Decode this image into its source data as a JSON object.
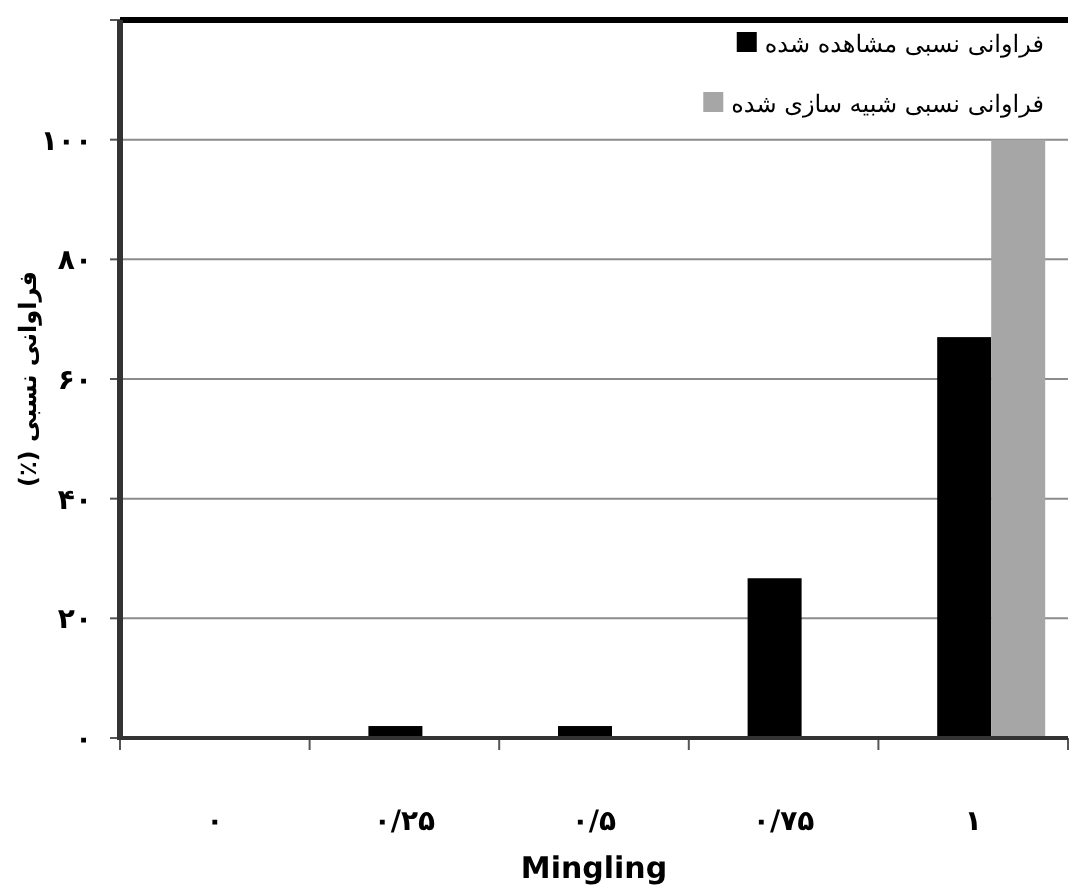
{
  "chart_data": {
    "type": "bar",
    "xlabel": "Mingling",
    "ylabel": "فراوانی نسبی (٪)",
    "categories": [
      "۰",
      "۰/۲۵",
      "۰/۵",
      "۰/۷۵",
      "۱"
    ],
    "series": [
      {
        "name": "فراوانی نسبی مشاهده شده",
        "color": "#000000",
        "values": [
          0,
          2,
          2,
          26.7,
          67
        ]
      },
      {
        "name": "فراوانی نسبی شبیه سازی شده",
        "color": "#a6a6a6",
        "values": [
          0,
          0,
          0,
          0,
          100
        ]
      }
    ],
    "ylim": [
      0,
      120
    ],
    "yticks": [
      {
        "value": 0,
        "label": "۰"
      },
      {
        "value": 20,
        "label": "۲۰"
      },
      {
        "value": 40,
        "label": "۴۰"
      },
      {
        "value": 60,
        "label": "۶۰"
      },
      {
        "value": 80,
        "label": "۸۰"
      },
      {
        "value": 100,
        "label": "۱۰۰"
      },
      {
        "value": 120,
        "label": null
      }
    ],
    "grid": "y",
    "legend": "top right"
  }
}
